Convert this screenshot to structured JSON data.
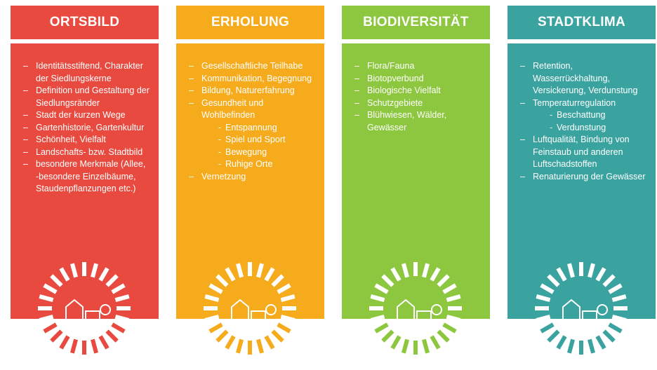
{
  "columns": [
    {
      "title": "ORTSBILD",
      "color": "#e84a3f",
      "items": [
        {
          "text": "Identitätsstiftend, Charakter der Siedlungskerne"
        },
        {
          "text": "Definition und Gestaltung der Siedlungsränder"
        },
        {
          "text": "Stadt der kurzen Wege"
        },
        {
          "text": "Gartenhistorie, Gartenkultur"
        },
        {
          "text": "Schönheit, Vielfalt"
        },
        {
          "text": "Landschafts- bzw. Stadtbild"
        },
        {
          "text": "besondere Merkmale (Allee, -besondere Einzelbäume, Staudenpflanzungen etc.)"
        }
      ]
    },
    {
      "title": "ERHOLUNG",
      "color": "#f6ab1d",
      "items": [
        {
          "text": "Gesellschaftliche Teilhabe"
        },
        {
          "text": "Kommunikation, Begegnung"
        },
        {
          "text": "Bildung, Naturerfahrung"
        },
        {
          "text": "Gesundheit und Wohlbefinden",
          "children": [
            "Entspannung",
            "Spiel und Sport",
            "Bewegung",
            "Ruhige Orte"
          ]
        },
        {
          "text": "Vernetzung"
        }
      ]
    },
    {
      "title": "BIODIVERSITÄT",
      "color": "#8dc63f",
      "items": [
        {
          "text": "Flora/Fauna"
        },
        {
          "text": "Biotopverbund"
        },
        {
          "text": "Biologische Vielfalt"
        },
        {
          "text": "Schutzgebiete"
        },
        {
          "text": "Blühwiesen, Wälder, Gewässer"
        }
      ]
    },
    {
      "title": "STADTKLIMA",
      "color": "#3ba39f",
      "items": [
        {
          "text": "Retention, Wasserrückhaltung, Versickerung, Verdunstung"
        },
        {
          "text": "Temperaturregulation",
          "children": [
            "Beschattung",
            "Verdunstung"
          ]
        },
        {
          "text": "Luftqualität, Bindung von Feinstaub und anderen Luftschadstoffen"
        },
        {
          "text": "Renaturierung der Gewässer"
        }
      ]
    }
  ]
}
